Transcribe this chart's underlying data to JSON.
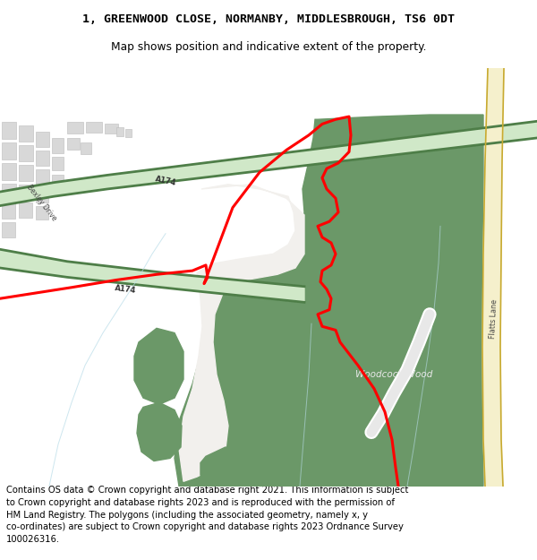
{
  "title": "1, GREENWOOD CLOSE, NORMANBY, MIDDLESBROUGH, TS6 0DT",
  "subtitle": "Map shows position and indicative extent of the property.",
  "footer": "Contains OS data © Crown copyright and database right 2021. This information is subject\nto Crown copyright and database rights 2023 and is reproduced with the permission of\nHM Land Registry. The polygons (including the associated geometry, namely x, y\nco-ordinates) are subject to Crown copyright and database rights 2023 Ordnance Survey\n100026316.",
  "bg_color": "#ffffff",
  "map_bg": "#f2f0ed",
  "green_woodland": "#6b9868",
  "light_green_road": "#d0e8c8",
  "dark_green_road": "#4e7e48",
  "road_yellow": "#e8d870",
  "road_yellow_dark": "#c8aa30",
  "road_yellow_bg": "#f5f0cc",
  "red_line": "#ff0000",
  "water_blue": "#b8dce8",
  "building_gray": "#d8d8d8",
  "building_border": "#bbbbbb",
  "title_fontsize": 9.5,
  "subtitle_fontsize": 8.8,
  "footer_fontsize": 7.2
}
